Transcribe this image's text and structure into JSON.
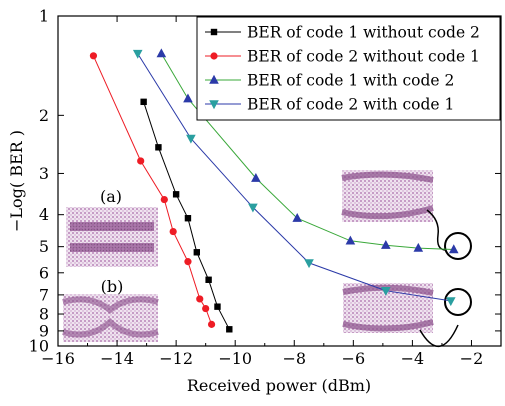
{
  "chart_data": {
    "type": "line",
    "xlabel": "Received power (dBm)",
    "ylabel": "−Log( BER )",
    "xlim": [
      -16,
      -1
    ],
    "ylim": [
      1,
      10
    ],
    "y_scale": "log",
    "x_ticks": [
      -16,
      -14,
      -12,
      -10,
      -8,
      -6,
      -4,
      -2
    ],
    "x_tick_labels": [
      "−16",
      "−14",
      "−12",
      "−10",
      "−8",
      "−6",
      "−4",
      "−2"
    ],
    "y_ticks": [
      1,
      2,
      3,
      4,
      5,
      6,
      7,
      8,
      9,
      10
    ],
    "y_tick_labels": [
      "1",
      "2",
      "3",
      "4",
      "5",
      "6",
      "7",
      "8",
      "9",
      "10"
    ],
    "legend_position": "top-right",
    "grid": false,
    "series": [
      {
        "name": "BER of code 1 without code 2",
        "color": "#000000",
        "marker": "square",
        "x": [
          -13.1,
          -12.6,
          -12.0,
          -11.6,
          -11.3,
          -10.9,
          -10.6,
          -10.2
        ],
        "y": [
          1.82,
          2.5,
          3.47,
          4.1,
          5.2,
          6.3,
          7.6,
          8.9
        ]
      },
      {
        "name": "BER of code 2 without code 1",
        "color": "#ee1c25",
        "marker": "circle",
        "x": [
          -14.8,
          -13.2,
          -12.4,
          -12.1,
          -11.6,
          -11.2,
          -11.0,
          -10.8
        ],
        "y": [
          1.32,
          2.75,
          3.6,
          4.5,
          5.55,
          7.2,
          7.7,
          8.6
        ]
      },
      {
        "name": "BER of code 1 with code 2",
        "color": "#2b3aa8",
        "line_color": "#3aa83a",
        "marker": "triangle-up",
        "x": [
          -12.5,
          -11.6,
          -9.3,
          -7.9,
          -6.1,
          -4.9,
          -3.8,
          -2.6
        ],
        "y": [
          1.3,
          1.78,
          3.1,
          4.1,
          4.8,
          4.95,
          5.05,
          5.1
        ]
      },
      {
        "name": "BER of code 2 with code 1",
        "color": "#2a9fa0",
        "line_color": "#2b3aa8",
        "marker": "triangle-down",
        "x": [
          -13.3,
          -11.5,
          -9.4,
          -7.5,
          -4.9,
          -2.7
        ],
        "y": [
          1.3,
          2.35,
          3.8,
          5.6,
          6.8,
          7.3
        ]
      }
    ],
    "annotations": [
      "(a)",
      "(b)"
    ]
  }
}
